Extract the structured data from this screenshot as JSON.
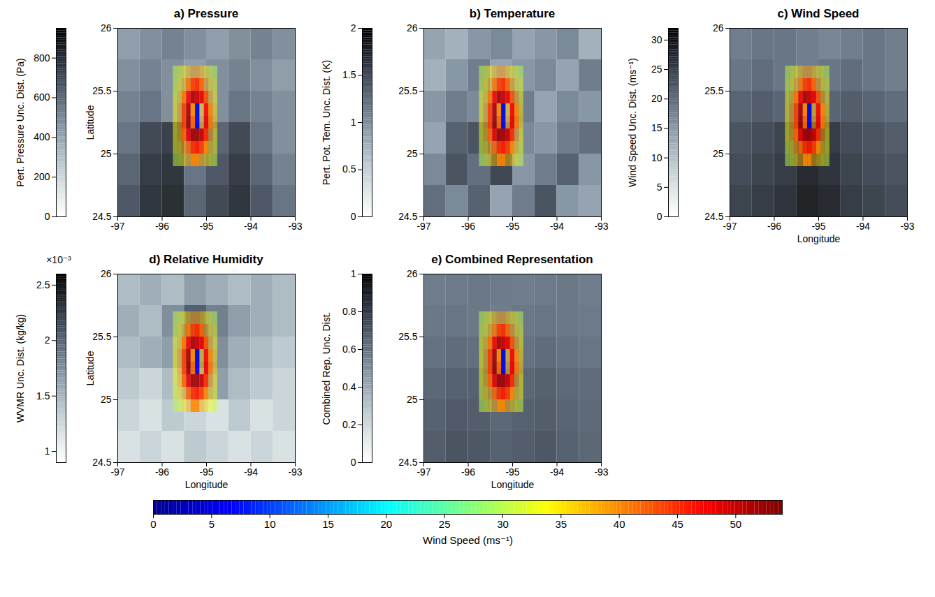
{
  "chart_data": [
    {
      "type": "heatmap",
      "title": "a) Pressure",
      "ylabel": "Latitude",
      "xlim": [
        -97,
        -93
      ],
      "xticks": [
        -97,
        -96,
        -95,
        -94,
        -93
      ],
      "ylim": [
        24.5,
        26
      ],
      "yticks": [
        24.5,
        25,
        25.5,
        26
      ],
      "colorbar": {
        "label": "Pert. Pressure Unc. Dist. (Pa)",
        "range": [
          0,
          950
        ],
        "ticks": [
          0,
          200,
          400,
          600,
          800
        ]
      },
      "lon_edges": [
        -97,
        -96.5,
        -96,
        -95.5,
        -95,
        -94.5,
        -94,
        -93.5,
        -93
      ],
      "lat_edges": [
        24.5,
        24.75,
        25,
        25.25,
        25.5,
        25.75,
        26
      ],
      "cells": [
        [
          700,
          820,
          850,
          650,
          750,
          820,
          700,
          600
        ],
        [
          650,
          800,
          820,
          600,
          700,
          800,
          650,
          550
        ],
        [
          600,
          750,
          780,
          550,
          650,
          750,
          600,
          500
        ],
        [
          550,
          600,
          500,
          450,
          500,
          600,
          550,
          500
        ],
        [
          500,
          550,
          500,
          450,
          500,
          550,
          500,
          450
        ],
        [
          450,
          500,
          550,
          500,
          450,
          500,
          550,
          500
        ]
      ]
    },
    {
      "type": "heatmap",
      "title": "b) Temperature",
      "xlim": [
        -97,
        -93
      ],
      "xticks": [
        -97,
        -96,
        -95,
        -94,
        -93
      ],
      "ylim": [
        24.5,
        26
      ],
      "yticks": [
        24.5,
        25,
        25.5,
        26
      ],
      "colorbar": {
        "label": "Pert. Pot. Tem. Unc. Dist. (K)",
        "range": [
          0,
          2
        ],
        "ticks": [
          0,
          0.5,
          1,
          1.5,
          2
        ]
      },
      "lon_edges": [
        -97,
        -96.5,
        -96,
        -95.5,
        -95,
        -94.5,
        -94,
        -93.5,
        -93
      ],
      "lat_edges": [
        24.5,
        24.75,
        25,
        25.25,
        25.5,
        25.75,
        26
      ],
      "cells": [
        [
          1.3,
          1.1,
          1.4,
          0.9,
          1.2,
          1.5,
          1.0,
          0.9
        ],
        [
          1.1,
          1.5,
          1.3,
          1.6,
          1.0,
          1.2,
          1.4,
          1.0
        ],
        [
          0.9,
          1.4,
          1.5,
          1.3,
          1.1,
          1.0,
          1.2,
          1.3
        ],
        [
          1.0,
          1.2,
          1.1,
          1.0,
          1.2,
          0.9,
          1.1,
          1.0
        ],
        [
          0.8,
          1.0,
          1.2,
          0.9,
          1.0,
          1.1,
          0.9,
          1.2
        ],
        [
          0.9,
          0.8,
          1.0,
          1.1,
          0.9,
          1.0,
          1.1,
          0.8
        ]
      ]
    },
    {
      "type": "heatmap",
      "title": "c) Wind Speed",
      "xlabel": "Longitude",
      "xlim": [
        -97,
        -93
      ],
      "xticks": [
        -97,
        -96,
        -95,
        -94,
        -93
      ],
      "ylim": [
        24.5,
        26
      ],
      "yticks": [
        24.5,
        25,
        25.5,
        26
      ],
      "colorbar": {
        "label": "Wind Speed Unc. Dist. (ms⁻¹)",
        "range": [
          0,
          32
        ],
        "ticks": [
          0,
          5,
          10,
          15,
          20,
          25,
          30
        ]
      },
      "lon_edges": [
        -97,
        -96.5,
        -96,
        -95.5,
        -95,
        -94.5,
        -94,
        -93.5,
        -93
      ],
      "lat_edges": [
        24.5,
        24.75,
        25,
        25.25,
        25.5,
        25.75,
        26
      ],
      "cells": [
        [
          26,
          27,
          28,
          30,
          29,
          27,
          26,
          25
        ],
        [
          25,
          26,
          27,
          29,
          28,
          26,
          25,
          24
        ],
        [
          24,
          25,
          26,
          28,
          27,
          25,
          24,
          23
        ],
        [
          22,
          23,
          22,
          21,
          22,
          23,
          22,
          21
        ],
        [
          20,
          21,
          20,
          19,
          20,
          21,
          20,
          19
        ],
        [
          19,
          20,
          20,
          19,
          18,
          19,
          20,
          19
        ]
      ]
    },
    {
      "type": "heatmap",
      "title": "d) Relative Humidity",
      "xlabel": "Longitude",
      "ylabel": "Latitude",
      "xlim": [
        -97,
        -93
      ],
      "xticks": [
        -97,
        -96,
        -95,
        -94,
        -93
      ],
      "ylim": [
        24.5,
        26
      ],
      "yticks": [
        24.5,
        25,
        25.5,
        26
      ],
      "colorbar": {
        "label": "WVMR Unc. Dist. (kg/kg)",
        "range": [
          0.0009,
          0.0026
        ],
        "exponent_label": "×10⁻³",
        "ticks": [
          {
            "value": 0.001,
            "label": "1"
          },
          {
            "value": 0.0015,
            "label": "1.5"
          },
          {
            "value": 0.002,
            "label": "2"
          },
          {
            "value": 0.0025,
            "label": "2.5"
          }
        ]
      },
      "lon_edges": [
        -97,
        -96.5,
        -96,
        -95.5,
        -95,
        -94.5,
        -94,
        -93.5,
        -93
      ],
      "lat_edges": [
        24.5,
        24.75,
        25,
        25.25,
        25.5,
        25.75,
        26
      ],
      "cells": [
        [
          0.0012,
          0.0013,
          0.0012,
          0.0014,
          0.0013,
          0.0012,
          0.0013,
          0.0012
        ],
        [
          0.0013,
          0.0012,
          0.0014,
          0.0013,
          0.0012,
          0.0014,
          0.0012,
          0.0013
        ],
        [
          0.0014,
          0.0013,
          0.0015,
          0.0016,
          0.0017,
          0.0015,
          0.0014,
          0.0013
        ],
        [
          0.0015,
          0.0016,
          0.0017,
          0.0019,
          0.0018,
          0.0016,
          0.0015,
          0.0014
        ],
        [
          0.0016,
          0.0015,
          0.0018,
          0.0021,
          0.0019,
          0.0017,
          0.0016,
          0.0015
        ],
        [
          0.0015,
          0.0016,
          0.0015,
          0.0017,
          0.0016,
          0.0015,
          0.0016,
          0.0015
        ]
      ]
    },
    {
      "type": "heatmap",
      "title": "e) Combined Representation",
      "xlabel": "Longitude",
      "xlim": [
        -97,
        -93
      ],
      "xticks": [
        -97,
        -96,
        -95,
        -94,
        -93
      ],
      "ylim": [
        24.5,
        26
      ],
      "yticks": [
        24.5,
        25,
        25.5,
        26
      ],
      "colorbar": {
        "label": "Combined Rep. Unc. Dist.",
        "range": [
          0,
          1
        ],
        "ticks": [
          0,
          0.2,
          0.4,
          0.6,
          0.8,
          1
        ]
      },
      "lon_edges": [
        -97,
        -96.5,
        -96,
        -95.5,
        -95,
        -94.5,
        -94,
        -93.5,
        -93
      ],
      "lat_edges": [
        24.5,
        24.75,
        25,
        25.25,
        25.5,
        25.75,
        26
      ],
      "cells": [
        [
          0.72,
          0.75,
          0.74,
          0.7,
          0.72,
          0.74,
          0.7,
          0.68
        ],
        [
          0.7,
          0.73,
          0.72,
          0.68,
          0.7,
          0.72,
          0.69,
          0.67
        ],
        [
          0.68,
          0.7,
          0.7,
          0.66,
          0.68,
          0.7,
          0.67,
          0.66
        ],
        [
          0.64,
          0.66,
          0.65,
          0.62,
          0.64,
          0.66,
          0.64,
          0.63
        ],
        [
          0.62,
          0.63,
          0.62,
          0.6,
          0.62,
          0.63,
          0.62,
          0.61
        ],
        [
          0.6,
          0.61,
          0.62,
          0.61,
          0.6,
          0.61,
          0.62,
          0.6
        ]
      ]
    },
    {
      "type": "colorbar",
      "label": "Wind Speed (ms⁻¹)",
      "range": [
        0,
        54
      ],
      "ticks": [
        0,
        5,
        10,
        15,
        20,
        25,
        30,
        35,
        40,
        45,
        50
      ],
      "lon_edges": [
        -95.75,
        -95.65,
        -95.55,
        -95.45,
        -95.35,
        -95.25,
        -95.15,
        -95.05,
        -94.95,
        -94.85,
        -94.75
      ],
      "lat_edges": [
        24.9,
        25.0,
        25.1,
        25.2,
        25.3,
        25.4,
        25.5,
        25.6,
        25.7
      ],
      "cells": [
        [
          30,
          32,
          35,
          38,
          40,
          40,
          38,
          36,
          33,
          31
        ],
        [
          32,
          35,
          38,
          42,
          45,
          46,
          44,
          40,
          36,
          33
        ],
        [
          33,
          37,
          42,
          48,
          52,
          52,
          50,
          45,
          39,
          34
        ],
        [
          34,
          38,
          44,
          52,
          42,
          6,
          38,
          48,
          41,
          36
        ],
        [
          34,
          38,
          44,
          51,
          40,
          5,
          36,
          47,
          40,
          35
        ],
        [
          33,
          36,
          41,
          47,
          51,
          50,
          48,
          43,
          38,
          34
        ],
        [
          31,
          34,
          37,
          41,
          44,
          45,
          42,
          39,
          35,
          32
        ],
        [
          30,
          32,
          34,
          37,
          39,
          39,
          37,
          35,
          32,
          30
        ]
      ]
    }
  ]
}
